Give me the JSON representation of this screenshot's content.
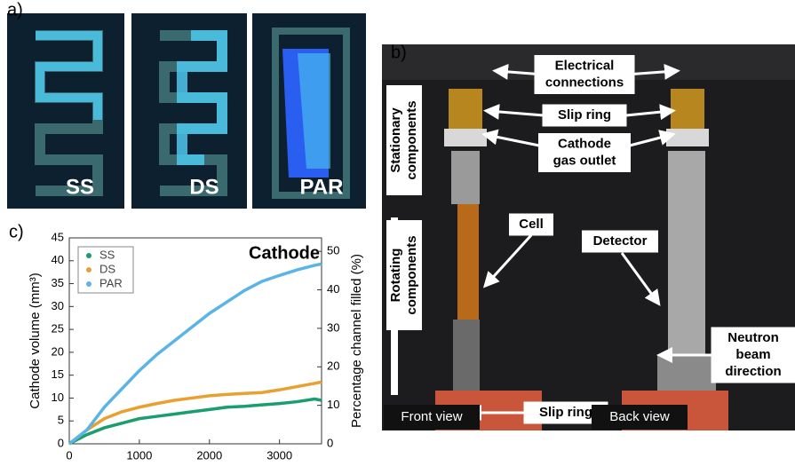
{
  "panels": {
    "a": {
      "label": "a)",
      "images": [
        "SS",
        "DS",
        "PAR"
      ]
    },
    "b": {
      "label": "b)",
      "side_labels": [
        [
          "Stationary",
          "components"
        ],
        [
          "Rotating",
          "components"
        ]
      ],
      "callouts": [
        [
          "Electrical",
          "connections"
        ],
        [
          "Slip ring"
        ],
        [
          "Cathode",
          "gas outlet"
        ],
        [
          "Cell"
        ],
        [
          "Detector"
        ],
        [
          "Neutron",
          "beam",
          "direction"
        ],
        [
          "Slip ring"
        ]
      ],
      "views": [
        "Front view",
        "Back view"
      ]
    },
    "c": {
      "label": "c)"
    }
  },
  "chart_data": {
    "type": "line",
    "annotation": "Cathode",
    "y_label": "Cathode volume (mm³)",
    "y2_label": "Percentage channel filled (%)",
    "x": [
      0,
      250,
      500,
      750,
      1000,
      1250,
      1500,
      1750,
      2000,
      2250,
      2500,
      2750,
      3000,
      3250,
      3500,
      3600
    ],
    "xlim": [
      0,
      3600
    ],
    "xticks": [
      0,
      1000,
      2000,
      3000
    ],
    "ylim": [
      0,
      45
    ],
    "yticks": [
      0,
      5,
      10,
      15,
      20,
      25,
      30,
      35,
      40,
      45
    ],
    "y2lim": [
      0,
      53.5
    ],
    "y2ticks": [
      0,
      10,
      20,
      30,
      40,
      50
    ],
    "legend": "upper left",
    "series": [
      {
        "name": "SS",
        "color": "#1a9e6e",
        "values": [
          0,
          2,
          3.5,
          4.5,
          5.5,
          6,
          6.5,
          7,
          7.5,
          8,
          8.2,
          8.5,
          8.8,
          9.2,
          9.8,
          9.5
        ]
      },
      {
        "name": "DS",
        "color": "#e8a030",
        "values": [
          0,
          3,
          5.5,
          7,
          8,
          8.8,
          9.5,
          10,
          10.5,
          10.8,
          11,
          11.2,
          11.8,
          12.5,
          13.2,
          13.5
        ]
      },
      {
        "name": "PAR",
        "color": "#5ab4e6",
        "values": [
          0,
          3,
          8,
          12,
          16,
          19.5,
          22.5,
          25.5,
          28.5,
          31,
          33.5,
          35.5,
          36.8,
          38,
          39,
          39.3
        ]
      }
    ]
  }
}
